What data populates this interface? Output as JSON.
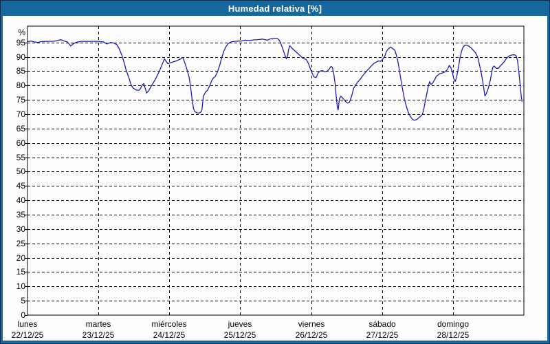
{
  "window": {
    "title": "Humedad relativa [%]"
  },
  "colors": {
    "header_bg": "#17689d",
    "frame": "#17689d",
    "outer_line": "#0a2b4d",
    "plot_bg": "#fdfdfd",
    "plot_border": "#000000",
    "grid": "#000000",
    "line": "#1a1ab4",
    "text": "#000000",
    "title_text": "#ffffff"
  },
  "chart_data": {
    "type": "line",
    "title": "Humedad relativa [%]",
    "xlabel": "",
    "ylabel": "%",
    "ylim": [
      0,
      100.7
    ],
    "yticks": [
      0,
      5,
      10,
      15,
      20,
      25,
      30,
      35,
      40,
      45,
      50,
      55,
      60,
      65,
      70,
      75,
      80,
      85,
      90,
      95
    ],
    "grid": true,
    "legend_position": "none",
    "x_axis": {
      "unit": "days",
      "days": [
        {
          "name": "lunes",
          "date": "22/12/25"
        },
        {
          "name": "martes",
          "date": "23/12/25"
        },
        {
          "name": "miércoles",
          "date": "24/12/25"
        },
        {
          "name": "jueves",
          "date": "25/12/25"
        },
        {
          "name": "viernes",
          "date": "26/12/25"
        },
        {
          "name": "sábado",
          "date": "27/12/25"
        },
        {
          "name": "domingo",
          "date": "28/12/25"
        }
      ]
    },
    "series": [
      {
        "name": "Humedad relativa",
        "color": "#1a1ab4",
        "x_unit": "days_from_monday_00h",
        "points": [
          [
            0.0,
            95.3
          ],
          [
            0.05,
            95.5
          ],
          [
            0.1,
            95.2
          ],
          [
            0.15,
            95.0
          ],
          [
            0.19,
            95.3
          ],
          [
            0.26,
            95.4
          ],
          [
            0.34,
            95.4
          ],
          [
            0.41,
            95.6
          ],
          [
            0.47,
            96.0
          ],
          [
            0.52,
            95.5
          ],
          [
            0.56,
            95.2
          ],
          [
            0.61,
            93.8
          ],
          [
            0.65,
            94.6
          ],
          [
            0.69,
            95.1
          ],
          [
            0.76,
            95.4
          ],
          [
            0.84,
            95.4
          ],
          [
            0.91,
            95.4
          ],
          [
            1.0,
            95.4
          ],
          [
            1.07,
            95.2
          ],
          [
            1.12,
            94.5
          ],
          [
            1.17,
            95.0
          ],
          [
            1.22,
            94.8
          ],
          [
            1.26,
            94.2
          ],
          [
            1.29,
            93.0
          ],
          [
            1.33,
            90.6
          ],
          [
            1.36,
            88.2
          ],
          [
            1.39,
            85.4
          ],
          [
            1.43,
            82.7
          ],
          [
            1.46,
            80.3
          ],
          [
            1.49,
            79.1
          ],
          [
            1.53,
            78.5
          ],
          [
            1.57,
            78.3
          ],
          [
            1.59,
            78.8
          ],
          [
            1.62,
            80.3
          ],
          [
            1.64,
            80.7
          ],
          [
            1.66,
            79.0
          ],
          [
            1.68,
            77.4
          ],
          [
            1.71,
            78.2
          ],
          [
            1.74,
            79.6
          ],
          [
            1.77,
            80.8
          ],
          [
            1.81,
            82.5
          ],
          [
            1.85,
            84.5
          ],
          [
            1.89,
            86.8
          ],
          [
            1.93,
            89.3
          ],
          [
            1.95,
            88.6
          ],
          [
            1.98,
            87.6
          ],
          [
            2.02,
            88.0
          ],
          [
            2.06,
            88.3
          ],
          [
            2.11,
            88.7
          ],
          [
            2.16,
            89.3
          ],
          [
            2.19,
            89.8
          ],
          [
            2.22,
            87.8
          ],
          [
            2.25,
            85.5
          ],
          [
            2.28,
            82.8
          ],
          [
            2.3,
            79.5
          ],
          [
            2.32,
            75.5
          ],
          [
            2.34,
            72.0
          ],
          [
            2.36,
            70.9
          ],
          [
            2.39,
            70.5
          ],
          [
            2.42,
            70.4
          ],
          [
            2.45,
            70.9
          ],
          [
            2.46,
            71.5
          ],
          [
            2.48,
            76.3
          ],
          [
            2.51,
            77.7
          ],
          [
            2.54,
            78.4
          ],
          [
            2.57,
            80.0
          ],
          [
            2.6,
            81.8
          ],
          [
            2.62,
            82.6
          ],
          [
            2.65,
            83.2
          ],
          [
            2.68,
            84.8
          ],
          [
            2.71,
            87.0
          ],
          [
            2.74,
            89.8
          ],
          [
            2.77,
            92.0
          ],
          [
            2.8,
            93.6
          ],
          [
            2.83,
            94.6
          ],
          [
            2.87,
            95.2
          ],
          [
            2.92,
            95.4
          ],
          [
            2.97,
            95.5
          ],
          [
            3.01,
            95.5
          ],
          [
            3.07,
            95.8
          ],
          [
            3.13,
            95.7
          ],
          [
            3.19,
            95.9
          ],
          [
            3.25,
            96.0
          ],
          [
            3.31,
            96.2
          ],
          [
            3.35,
            96.0
          ],
          [
            3.38,
            95.8
          ],
          [
            3.42,
            96.2
          ],
          [
            3.47,
            96.4
          ],
          [
            3.52,
            96.4
          ],
          [
            3.55,
            95.8
          ],
          [
            3.57,
            94.8
          ],
          [
            3.6,
            92.8
          ],
          [
            3.63,
            90.6
          ],
          [
            3.65,
            89.3
          ],
          [
            3.67,
            90.5
          ],
          [
            3.68,
            92.4
          ],
          [
            3.7,
            93.9
          ],
          [
            3.73,
            93.0
          ],
          [
            3.77,
            92.1
          ],
          [
            3.81,
            91.2
          ],
          [
            3.85,
            90.3
          ],
          [
            3.89,
            89.4
          ],
          [
            3.93,
            89.1
          ],
          [
            3.96,
            87.8
          ],
          [
            3.99,
            85.8
          ],
          [
            4.02,
            84.0
          ],
          [
            4.04,
            83.0
          ],
          [
            4.07,
            82.8
          ],
          [
            4.1,
            84.5
          ],
          [
            4.13,
            85.1
          ],
          [
            4.16,
            85.2
          ],
          [
            4.19,
            84.8
          ],
          [
            4.22,
            84.9
          ],
          [
            4.25,
            85.6
          ],
          [
            4.28,
            86.7
          ],
          [
            4.3,
            86.3
          ],
          [
            4.32,
            83.9
          ],
          [
            4.34,
            80.4
          ],
          [
            4.35,
            77.0
          ],
          [
            4.37,
            72.5
          ],
          [
            4.38,
            71.5
          ],
          [
            4.4,
            75.5
          ],
          [
            4.42,
            76.3
          ],
          [
            4.45,
            75.5
          ],
          [
            4.48,
            74.6
          ],
          [
            4.51,
            73.9
          ],
          [
            4.54,
            74.2
          ],
          [
            4.57,
            76.3
          ],
          [
            4.6,
            79.1
          ],
          [
            4.63,
            80.3
          ],
          [
            4.66,
            81.3
          ],
          [
            4.69,
            82.1
          ],
          [
            4.72,
            83.2
          ],
          [
            4.76,
            84.4
          ],
          [
            4.8,
            85.5
          ],
          [
            4.84,
            86.6
          ],
          [
            4.88,
            87.6
          ],
          [
            4.92,
            88.2
          ],
          [
            4.95,
            88.6
          ],
          [
            4.98,
            88.4
          ],
          [
            5.01,
            89.2
          ],
          [
            5.04,
            90.3
          ],
          [
            5.06,
            91.8
          ],
          [
            5.09,
            92.8
          ],
          [
            5.12,
            93.4
          ],
          [
            5.15,
            92.9
          ],
          [
            5.18,
            92.3
          ],
          [
            5.2,
            90.8
          ],
          [
            5.22,
            88.8
          ],
          [
            5.24,
            86.0
          ],
          [
            5.26,
            83.0
          ],
          [
            5.28,
            80.0
          ],
          [
            5.3,
            77.2
          ],
          [
            5.32,
            74.8
          ],
          [
            5.35,
            72.2
          ],
          [
            5.37,
            70.6
          ],
          [
            5.4,
            69.2
          ],
          [
            5.43,
            68.2
          ],
          [
            5.46,
            67.9
          ],
          [
            5.49,
            68.2
          ],
          [
            5.52,
            68.8
          ],
          [
            5.55,
            69.4
          ],
          [
            5.57,
            70.0
          ],
          [
            5.59,
            72.0
          ],
          [
            5.61,
            74.5
          ],
          [
            5.63,
            77.0
          ],
          [
            5.65,
            79.5
          ],
          [
            5.67,
            81.4
          ],
          [
            5.69,
            80.4
          ],
          [
            5.71,
            80.7
          ],
          [
            5.74,
            82.0
          ],
          [
            5.77,
            83.3
          ],
          [
            5.81,
            84.1
          ],
          [
            5.85,
            84.4
          ],
          [
            5.89,
            84.8
          ],
          [
            5.92,
            85.6
          ],
          [
            5.95,
            87.0
          ],
          [
            5.97,
            86.2
          ],
          [
            5.99,
            84.8
          ],
          [
            6.01,
            82.5
          ],
          [
            6.03,
            81.4
          ],
          [
            6.04,
            82.0
          ],
          [
            6.06,
            84.0
          ],
          [
            6.08,
            86.8
          ],
          [
            6.1,
            89.8
          ],
          [
            6.12,
            91.8
          ],
          [
            6.14,
            93.3
          ],
          [
            6.17,
            94.1
          ],
          [
            6.2,
            94.0
          ],
          [
            6.23,
            93.6
          ],
          [
            6.26,
            93.0
          ],
          [
            6.29,
            92.2
          ],
          [
            6.32,
            91.4
          ],
          [
            6.35,
            89.8
          ],
          [
            6.37,
            87.6
          ],
          [
            6.39,
            85.5
          ],
          [
            6.41,
            82.9
          ],
          [
            6.43,
            79.8
          ],
          [
            6.45,
            76.4
          ],
          [
            6.47,
            77.1
          ],
          [
            6.5,
            79.2
          ],
          [
            6.53,
            82.2
          ],
          [
            6.56,
            86.3
          ],
          [
            6.58,
            86.8
          ],
          [
            6.61,
            86.0
          ],
          [
            6.64,
            86.0
          ],
          [
            6.66,
            86.6
          ],
          [
            6.69,
            87.4
          ],
          [
            6.72,
            88.2
          ],
          [
            6.75,
            89.3
          ],
          [
            6.78,
            90.1
          ],
          [
            6.81,
            90.5
          ],
          [
            6.84,
            90.7
          ],
          [
            6.87,
            90.7
          ],
          [
            6.89,
            90.4
          ],
          [
            6.91,
            88.8
          ],
          [
            6.93,
            84.5
          ],
          [
            6.95,
            79.5
          ],
          [
            6.965,
            75.8
          ],
          [
            6.975,
            74.5
          ]
        ]
      }
    ]
  }
}
